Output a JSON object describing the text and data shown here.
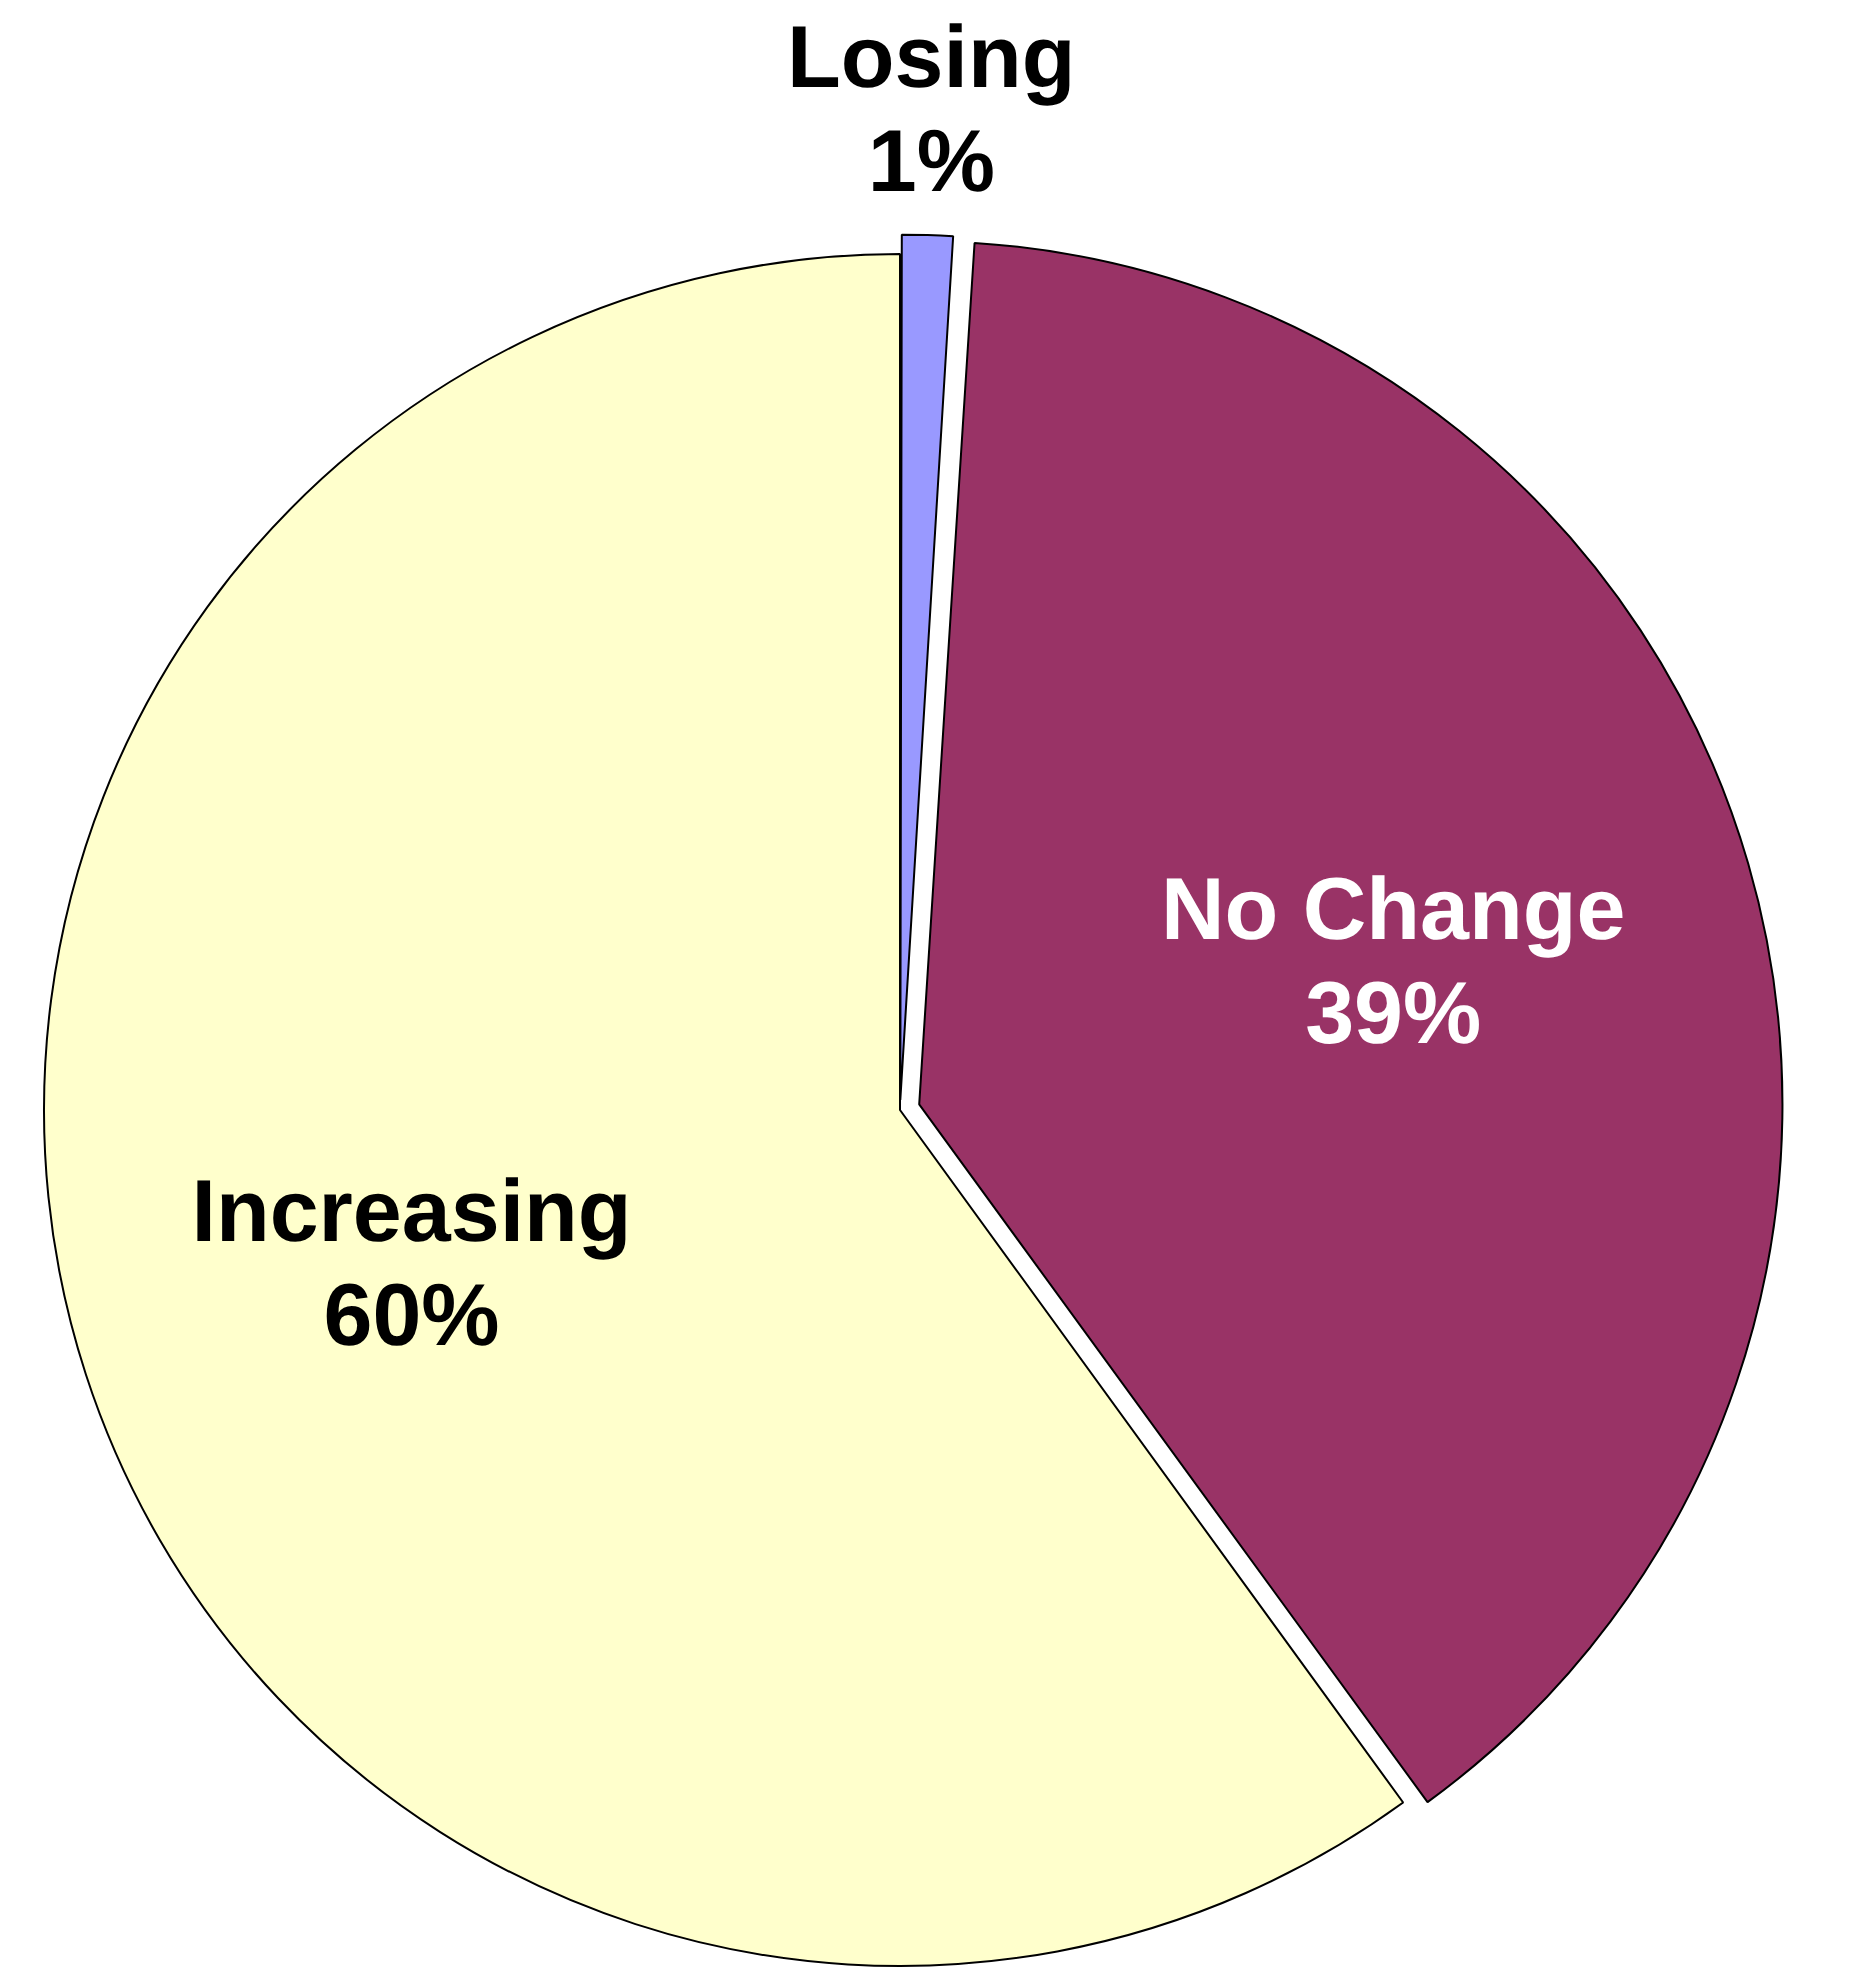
{
  "chart_data": {
    "type": "pie",
    "categories": [
      "Losing",
      "No Change",
      "Increasing"
    ],
    "values": [
      1,
      39,
      60
    ],
    "value_labels": [
      "1%",
      "39%",
      "60%"
    ],
    "colors": [
      "#9999ff",
      "#993366",
      "#ffffcc"
    ],
    "legend": false
  }
}
